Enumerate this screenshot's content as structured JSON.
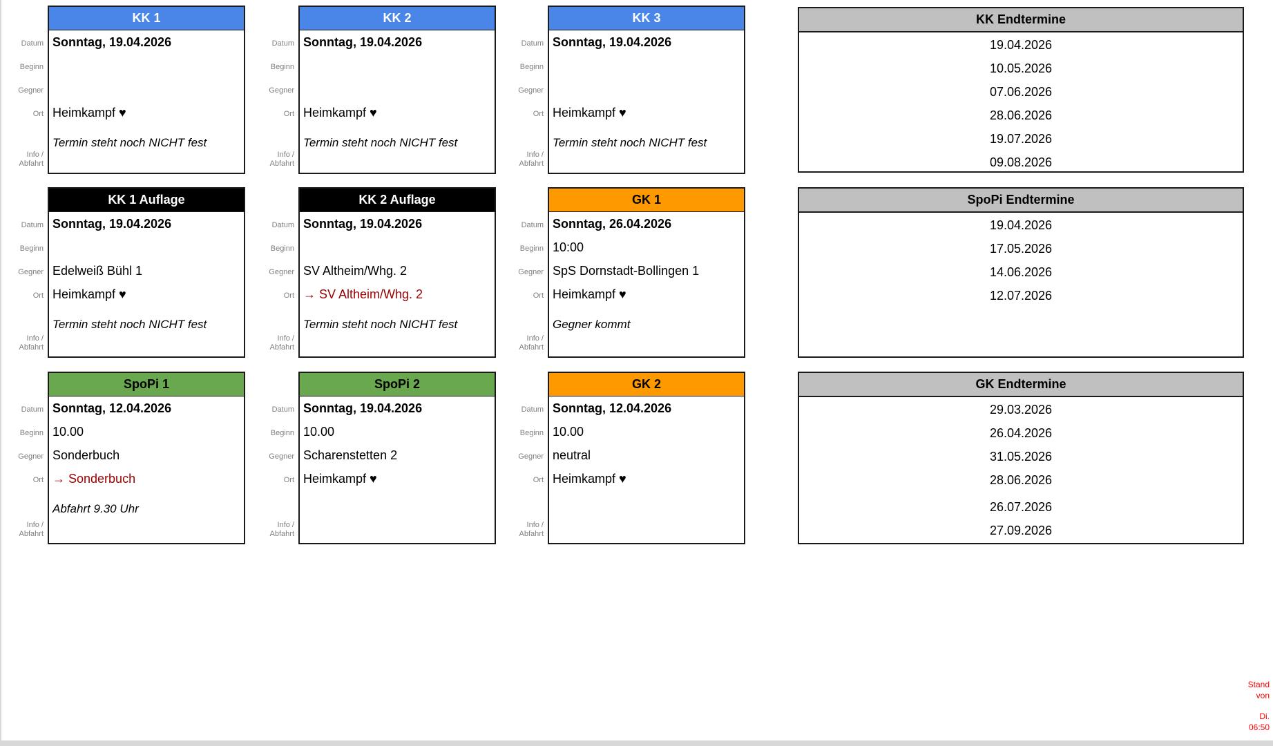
{
  "colors": {
    "header_blue": "#4a86e8",
    "header_black": "#000000",
    "header_orange": "#ff9900",
    "header_green": "#6aa84f",
    "header_gray": "#c0c0c0",
    "ort_red": "#990000",
    "stamp_red": "#ff0000"
  },
  "labels": {
    "datum": "Datum",
    "beginn": "Beginn",
    "gegner": "Gegner",
    "ort": "Ort",
    "info_line1": "Info /",
    "info_line2": "Abfahrt"
  },
  "cards": [
    {
      "title": "KK 1",
      "datum": "Sonntag, 19.04.2026",
      "beginn": "",
      "gegner": "",
      "ort": "Heimkampf ♥",
      "ort_red": false,
      "info": "Termin steht noch NICHT fest"
    },
    {
      "title": "KK 2",
      "datum": "Sonntag, 19.04.2026",
      "beginn": "",
      "gegner": "",
      "ort": "Heimkampf ♥",
      "ort_red": false,
      "info": "Termin steht noch NICHT fest"
    },
    {
      "title": "KK 3",
      "datum": "Sonntag, 19.04.2026",
      "beginn": "",
      "gegner": "",
      "ort": "Heimkampf ♥",
      "ort_red": false,
      "info": "Termin steht noch NICHT fest"
    },
    {
      "title": "KK 1 Auflage",
      "datum": "Sonntag, 19.04.2026",
      "beginn": "",
      "gegner": "Edelweiß Bühl 1",
      "ort": "Heimkampf ♥",
      "ort_red": false,
      "info": "Termin steht noch NICHT fest"
    },
    {
      "title": "KK 2 Auflage",
      "datum": "Sonntag, 19.04.2026",
      "beginn": "",
      "gegner": "SV Altheim/Whg. 2",
      "ort": "→ SV Altheim/Whg. 2",
      "ort_red": true,
      "info": "Termin steht noch NICHT fest"
    },
    {
      "title": "GK 1",
      "datum": "Sonntag, 26.04.2026",
      "beginn": "10:00",
      "gegner": "SpS Dornstadt-Bollingen 1",
      "ort": "Heimkampf ♥",
      "ort_red": false,
      "info": "Gegner kommt"
    },
    {
      "title": "SpoPi 1",
      "datum": "Sonntag, 12.04.2026",
      "beginn": "10.00",
      "gegner": "Sonderbuch",
      "ort": "→ Sonderbuch",
      "ort_red": true,
      "info": "Abfahrt 9.30 Uhr"
    },
    {
      "title": "SpoPi 2",
      "datum": "Sonntag, 19.04.2026",
      "beginn": "10.00",
      "gegner": "Scharenstetten 2",
      "ort": "Heimkampf ♥",
      "ort_red": false,
      "info": ""
    },
    {
      "title": "GK 2",
      "datum": "Sonntag, 12.04.2026",
      "beginn": "10.00",
      "gegner": "neutral",
      "ort": "Heimkampf ♥",
      "ort_red": false,
      "info": ""
    }
  ],
  "endtermine": [
    {
      "title": "KK Endtermine",
      "dates": [
        "19.04.2026",
        "10.05.2026",
        "07.06.2026",
        "28.06.2026",
        "19.07.2026",
        "09.08.2026"
      ]
    },
    {
      "title": "SpoPi Endtermine",
      "dates": [
        "19.04.2026",
        "17.05.2026",
        "14.06.2026",
        "12.07.2026"
      ]
    },
    {
      "title": "GK Endtermine",
      "dates": [
        "29.03.2026",
        "26.04.2026",
        "31.05.2026",
        "28.06.2026",
        "26.07.2026",
        "27.09.2026"
      ]
    }
  ],
  "stamp": {
    "line1": "Stand",
    "line2": "von",
    "line3": "Di.",
    "line4": "06:50"
  }
}
